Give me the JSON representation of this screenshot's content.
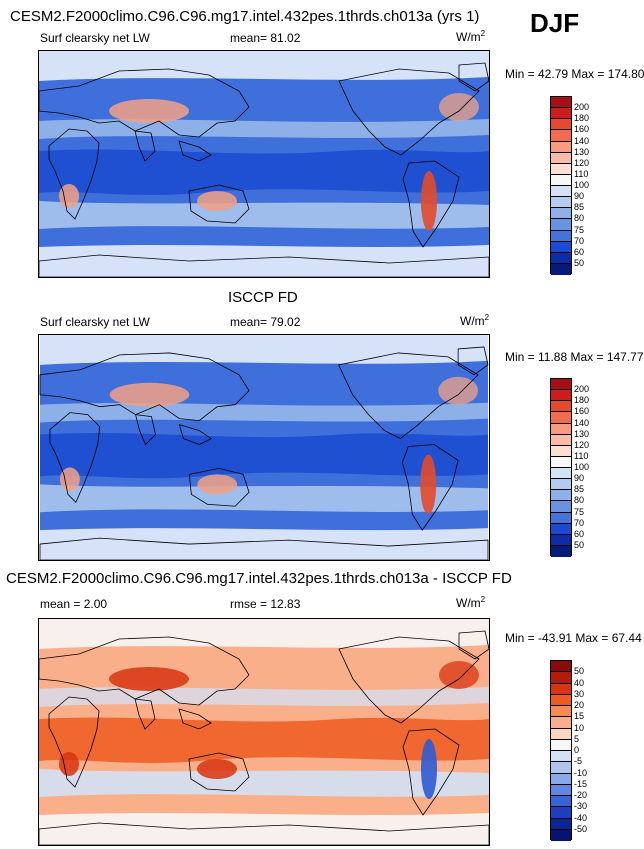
{
  "season": "DJF",
  "panels": [
    {
      "title": "CESM2.F2000climo.C96.C96.mg17.intel.432pes.1thrds.ch013a (yrs 1)",
      "left_label": "Surf clearsky net LW",
      "mean_text": "mean=  81.02",
      "units_base": "W/m",
      "units_exp": "2",
      "minmax": "Min =  42.79 Max = 174.80",
      "colorbar": {
        "labels": [
          "200",
          "180",
          "160",
          "140",
          "130",
          "120",
          "110",
          "100",
          "90",
          "85",
          "80",
          "75",
          "70",
          "60",
          "50"
        ],
        "colors": [
          "#a50f15",
          "#cb1d1d",
          "#e8482c",
          "#f26c4f",
          "#f89c7d",
          "#fbbba6",
          "#fde0d2",
          "#f7f7f7",
          "#d3e1f5",
          "#b4cbf0",
          "#8fb1ea",
          "#6893e0",
          "#4274dc",
          "#1a4bd0",
          "#0c2ca8",
          "#061a7a"
        ]
      },
      "fill_colors": {
        "bg": "#3f6fdb",
        "band": "#1a4bd0",
        "light": "#a9c5ee",
        "pale": "#e5eefb",
        "warm": "#f2a184",
        "hot": "#e24a2b"
      }
    },
    {
      "title": "ISCCP FD",
      "left_label": "Surf clearsky net LW",
      "mean_text": "mean=  79.02",
      "units_base": "W/m",
      "units_exp": "2",
      "minmax": "Min =  11.88 Max = 147.77",
      "colorbar": {
        "labels": [
          "200",
          "180",
          "160",
          "140",
          "130",
          "120",
          "110",
          "100",
          "90",
          "85",
          "80",
          "75",
          "70",
          "60",
          "50"
        ],
        "colors": [
          "#a50f15",
          "#cb1d1d",
          "#e8482c",
          "#f26c4f",
          "#f89c7d",
          "#fbbba6",
          "#fde0d2",
          "#f7f7f7",
          "#d3e1f5",
          "#b4cbf0",
          "#8fb1ea",
          "#6893e0",
          "#4274dc",
          "#1a4bd0",
          "#0c2ca8",
          "#061a7a"
        ]
      },
      "fill_colors": {
        "bg": "#3f6fdb",
        "band": "#1a4bd0",
        "light": "#a9c5ee",
        "pale": "#e5eefb",
        "warm": "#f2a184",
        "hot": "#e24a2b"
      }
    },
    {
      "title": "CESM2.F2000climo.C96.C96.mg17.intel.432pes.1thrds.ch013a - ISCCP FD",
      "left_label": "mean =   2.00",
      "mean_text": "rmse =  12.83",
      "units_base": "W/m",
      "units_exp": "2",
      "minmax": "Min = -43.91 Max =  67.44",
      "colorbar": {
        "labels": [
          "50",
          "40",
          "30",
          "20",
          "15",
          "10",
          "5",
          "0",
          "-5",
          "-10",
          "-15",
          "-20",
          "-30",
          "-40",
          "-50"
        ],
        "colors": [
          "#8b0a0a",
          "#b31b0c",
          "#d8340f",
          "#ee5a1f",
          "#f58a55",
          "#f9b08a",
          "#fcd6c0",
          "#f7f7f7",
          "#d3e1f5",
          "#aec6ee",
          "#88aaea",
          "#6088e0",
          "#3a64d6",
          "#1a3fbf",
          "#0c2494",
          "#061372"
        ]
      },
      "fill_colors": {
        "bg": "#f9b08a",
        "band": "#ee5a1f",
        "light": "#d3e1f5",
        "pale": "#f7f7f7",
        "warm": "#d8340f",
        "hot": "#2f5bd5"
      }
    }
  ],
  "chart_data": {
    "type": "heatmap",
    "season": "DJF",
    "variable": "Surf clearsky net LW",
    "units": "W/m2",
    "panels": [
      {
        "name": "CESM2.F2000climo.C96.C96.mg17.intel.432pes.1thrds.ch013a (yrs 1)",
        "mean": 81.02,
        "min": 42.79,
        "max": 174.8,
        "contour_levels": [
          50,
          60,
          70,
          75,
          80,
          85,
          90,
          100,
          110,
          120,
          130,
          140,
          160,
          180,
          200
        ]
      },
      {
        "name": "ISCCP FD",
        "mean": 79.02,
        "min": 11.88,
        "max": 147.77,
        "contour_levels": [
          50,
          60,
          70,
          75,
          80,
          85,
          90,
          100,
          110,
          120,
          130,
          140,
          160,
          180,
          200
        ]
      },
      {
        "name": "CESM2.F2000climo.C96.C96.mg17.intel.432pes.1thrds.ch013a - ISCCP FD",
        "mean": 2.0,
        "rmse": 12.83,
        "min": -43.91,
        "max": 67.44,
        "contour_levels": [
          -50,
          -40,
          -30,
          -20,
          -15,
          -10,
          -5,
          0,
          5,
          10,
          15,
          20,
          30,
          40,
          50
        ]
      }
    ]
  }
}
